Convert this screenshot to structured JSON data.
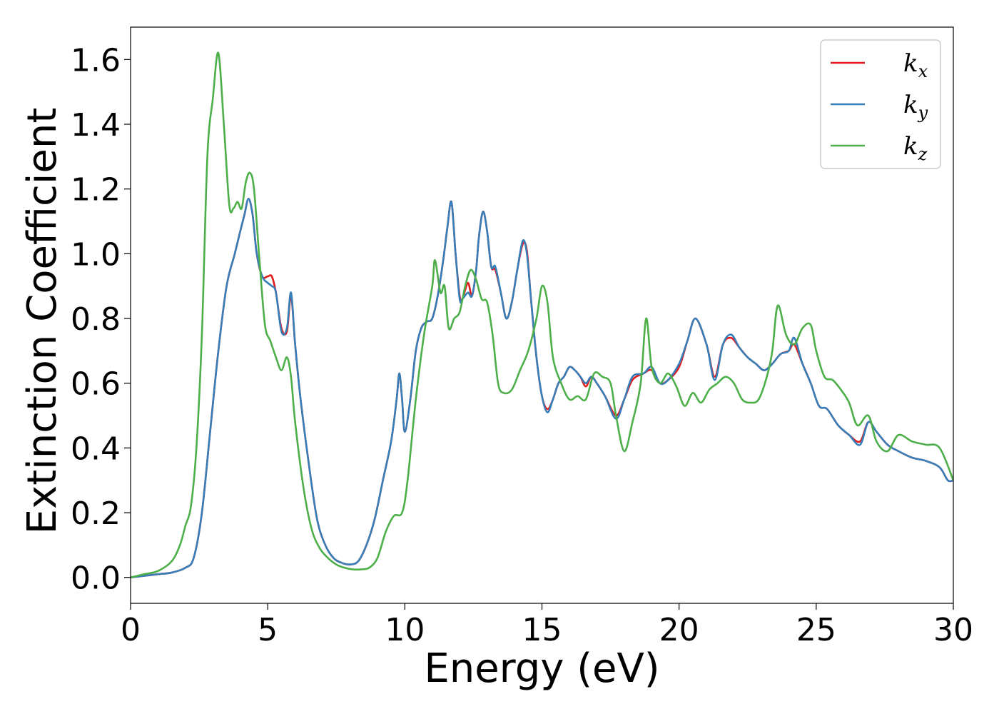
{
  "chart_data": {
    "type": "line",
    "title": "",
    "xlabel": "Energy (eV)",
    "ylabel": "Extinction Coefficient",
    "xlim": [
      0,
      30
    ],
    "ylim": [
      -0.08,
      1.7
    ],
    "xticks": [
      0,
      5,
      10,
      15,
      20,
      25,
      30
    ],
    "yticks": [
      "0.0",
      "0.2",
      "0.4",
      "0.6",
      "0.8",
      "1.0",
      "1.2",
      "1.4",
      "1.6"
    ],
    "grid": false,
    "legend_position": "top-right",
    "series": [
      {
        "name": "k_x",
        "legend_main": "k",
        "legend_sub": "x",
        "color": "#e41a1c",
        "x": [
          0,
          0.5,
          1.0,
          1.5,
          2.0,
          2.3,
          2.6,
          2.9,
          3.2,
          3.5,
          3.8,
          4.0,
          4.15,
          4.3,
          4.45,
          4.6,
          4.8,
          5.0,
          5.15,
          5.3,
          5.5,
          5.7,
          5.85,
          6.0,
          6.2,
          6.5,
          6.8,
          7.1,
          7.4,
          7.7,
          8.0,
          8.3,
          8.6,
          8.9,
          9.2,
          9.5,
          9.7,
          9.8,
          9.9,
          10.0,
          10.2,
          10.4,
          10.6,
          10.8,
          11.0,
          11.2,
          11.4,
          11.55,
          11.7,
          11.85,
          12.0,
          12.1,
          12.3,
          12.45,
          12.6,
          12.7,
          12.85,
          13.0,
          13.15,
          13.3,
          13.5,
          13.7,
          13.9,
          14.1,
          14.3,
          14.45,
          14.6,
          14.8,
          15.0,
          15.2,
          15.4,
          15.6,
          15.8,
          16.0,
          16.2,
          16.4,
          16.6,
          16.8,
          17.0,
          17.3,
          17.7,
          18.0,
          18.3,
          18.7,
          19.0,
          19.3,
          19.6,
          20.0,
          20.3,
          20.6,
          21.0,
          21.3,
          21.6,
          21.9,
          22.2,
          22.5,
          22.8,
          23.1,
          23.4,
          23.7,
          24.0,
          24.2,
          24.5,
          24.8,
          25.1,
          25.4,
          25.8,
          26.2,
          26.6,
          26.9,
          27.2,
          27.6,
          28.0,
          28.5,
          29.0,
          29.5,
          29.8,
          30.0
        ],
        "y": [
          0.0,
          0.005,
          0.01,
          0.015,
          0.03,
          0.06,
          0.2,
          0.45,
          0.7,
          0.9,
          1.0,
          1.07,
          1.12,
          1.17,
          1.12,
          1.0,
          0.93,
          0.93,
          0.93,
          0.88,
          0.77,
          0.76,
          0.87,
          0.72,
          0.55,
          0.35,
          0.18,
          0.1,
          0.06,
          0.045,
          0.04,
          0.05,
          0.1,
          0.18,
          0.3,
          0.42,
          0.55,
          0.63,
          0.55,
          0.45,
          0.55,
          0.7,
          0.77,
          0.79,
          0.8,
          0.87,
          0.98,
          1.08,
          1.16,
          1.0,
          0.87,
          0.86,
          0.91,
          0.87,
          0.95,
          1.05,
          1.13,
          1.07,
          0.96,
          0.95,
          0.88,
          0.8,
          0.85,
          0.95,
          1.03,
          1.01,
          0.86,
          0.68,
          0.56,
          0.52,
          0.55,
          0.6,
          0.62,
          0.65,
          0.64,
          0.62,
          0.59,
          0.62,
          0.6,
          0.56,
          0.5,
          0.55,
          0.61,
          0.63,
          0.64,
          0.6,
          0.61,
          0.65,
          0.73,
          0.8,
          0.72,
          0.62,
          0.72,
          0.74,
          0.71,
          0.68,
          0.66,
          0.64,
          0.66,
          0.69,
          0.7,
          0.72,
          0.66,
          0.6,
          0.53,
          0.52,
          0.47,
          0.44,
          0.42,
          0.48,
          0.45,
          0.41,
          0.39,
          0.37,
          0.36,
          0.34,
          0.3,
          0.3
        ]
      },
      {
        "name": "k_y",
        "legend_main": "k",
        "legend_sub": "y",
        "color": "#377eb8",
        "x": [
          0,
          0.5,
          1.0,
          1.5,
          2.0,
          2.3,
          2.6,
          2.9,
          3.2,
          3.5,
          3.8,
          4.0,
          4.15,
          4.3,
          4.45,
          4.6,
          4.8,
          5.0,
          5.15,
          5.3,
          5.5,
          5.7,
          5.85,
          6.0,
          6.2,
          6.5,
          6.8,
          7.1,
          7.4,
          7.7,
          8.0,
          8.3,
          8.6,
          8.9,
          9.2,
          9.5,
          9.7,
          9.8,
          9.9,
          10.0,
          10.2,
          10.4,
          10.6,
          10.8,
          11.0,
          11.2,
          11.4,
          11.55,
          11.7,
          11.85,
          12.0,
          12.1,
          12.3,
          12.45,
          12.6,
          12.7,
          12.85,
          13.0,
          13.15,
          13.3,
          13.5,
          13.7,
          13.9,
          14.1,
          14.3,
          14.45,
          14.6,
          14.8,
          15.0,
          15.2,
          15.4,
          15.6,
          15.8,
          16.0,
          16.2,
          16.4,
          16.6,
          16.8,
          17.0,
          17.3,
          17.7,
          18.0,
          18.3,
          18.7,
          19.0,
          19.3,
          19.6,
          20.0,
          20.3,
          20.6,
          21.0,
          21.3,
          21.6,
          21.9,
          22.2,
          22.5,
          22.8,
          23.1,
          23.4,
          23.7,
          24.0,
          24.2,
          24.5,
          24.8,
          25.1,
          25.4,
          25.8,
          26.2,
          26.6,
          26.9,
          27.2,
          27.6,
          28.0,
          28.5,
          29.0,
          29.5,
          29.8,
          30.0
        ],
        "y": [
          0.0,
          0.005,
          0.01,
          0.015,
          0.03,
          0.06,
          0.2,
          0.45,
          0.7,
          0.9,
          1.0,
          1.07,
          1.12,
          1.17,
          1.12,
          1.0,
          0.93,
          0.91,
          0.9,
          0.88,
          0.76,
          0.77,
          0.88,
          0.72,
          0.55,
          0.35,
          0.18,
          0.1,
          0.06,
          0.045,
          0.04,
          0.05,
          0.1,
          0.18,
          0.3,
          0.42,
          0.55,
          0.63,
          0.55,
          0.45,
          0.55,
          0.7,
          0.77,
          0.79,
          0.8,
          0.87,
          0.98,
          1.08,
          1.16,
          1.0,
          0.86,
          0.86,
          0.88,
          0.87,
          0.95,
          1.05,
          1.13,
          1.07,
          0.96,
          0.96,
          0.88,
          0.8,
          0.85,
          0.95,
          1.04,
          1.0,
          0.86,
          0.68,
          0.56,
          0.51,
          0.55,
          0.6,
          0.62,
          0.65,
          0.64,
          0.62,
          0.6,
          0.62,
          0.6,
          0.56,
          0.49,
          0.55,
          0.62,
          0.63,
          0.65,
          0.6,
          0.61,
          0.66,
          0.73,
          0.8,
          0.72,
          0.61,
          0.72,
          0.75,
          0.71,
          0.68,
          0.66,
          0.64,
          0.66,
          0.69,
          0.7,
          0.74,
          0.66,
          0.6,
          0.53,
          0.52,
          0.47,
          0.44,
          0.41,
          0.48,
          0.45,
          0.41,
          0.39,
          0.37,
          0.36,
          0.34,
          0.3,
          0.3
        ]
      },
      {
        "name": "k_z",
        "legend_main": "k",
        "legend_sub": "z",
        "color": "#4daf4a",
        "x": [
          0,
          0.5,
          1.0,
          1.5,
          1.8,
          2.0,
          2.2,
          2.4,
          2.6,
          2.8,
          3.0,
          3.2,
          3.4,
          3.6,
          3.75,
          3.9,
          4.05,
          4.2,
          4.35,
          4.5,
          4.7,
          4.9,
          5.1,
          5.3,
          5.5,
          5.7,
          5.85,
          6.0,
          6.3,
          6.6,
          6.9,
          7.2,
          7.5,
          7.8,
          8.1,
          8.4,
          8.7,
          9.0,
          9.3,
          9.6,
          9.9,
          10.1,
          10.4,
          10.7,
          11.0,
          11.1,
          11.3,
          11.45,
          11.6,
          11.8,
          12.0,
          12.2,
          12.4,
          12.6,
          12.8,
          13.0,
          13.2,
          13.4,
          13.6,
          13.9,
          14.2,
          14.5,
          14.8,
          15.0,
          15.2,
          15.4,
          15.7,
          16.0,
          16.3,
          16.6,
          16.9,
          17.2,
          17.5,
          17.7,
          18.0,
          18.3,
          18.6,
          18.8,
          19.0,
          19.3,
          19.6,
          19.9,
          20.2,
          20.5,
          20.8,
          21.1,
          21.4,
          21.7,
          22.0,
          22.3,
          22.6,
          22.9,
          23.2,
          23.4,
          23.6,
          23.9,
          24.2,
          24.5,
          24.8,
          25.0,
          25.3,
          25.6,
          25.9,
          26.2,
          26.5,
          26.9,
          27.2,
          27.6,
          28.0,
          28.5,
          29.0,
          29.5,
          30.0
        ],
        "y": [
          0.0,
          0.01,
          0.02,
          0.05,
          0.1,
          0.16,
          0.22,
          0.4,
          0.75,
          1.3,
          1.48,
          1.62,
          1.4,
          1.15,
          1.14,
          1.16,
          1.14,
          1.22,
          1.25,
          1.2,
          0.98,
          0.78,
          0.73,
          0.68,
          0.64,
          0.68,
          0.62,
          0.48,
          0.28,
          0.15,
          0.09,
          0.06,
          0.04,
          0.03,
          0.025,
          0.025,
          0.03,
          0.06,
          0.14,
          0.19,
          0.2,
          0.3,
          0.55,
          0.75,
          0.9,
          0.98,
          0.88,
          0.9,
          0.77,
          0.8,
          0.82,
          0.9,
          0.95,
          0.92,
          0.86,
          0.85,
          0.75,
          0.6,
          0.57,
          0.58,
          0.64,
          0.7,
          0.8,
          0.9,
          0.85,
          0.68,
          0.6,
          0.55,
          0.56,
          0.55,
          0.63,
          0.62,
          0.6,
          0.5,
          0.39,
          0.48,
          0.6,
          0.8,
          0.65,
          0.6,
          0.63,
          0.59,
          0.53,
          0.57,
          0.54,
          0.58,
          0.6,
          0.62,
          0.6,
          0.55,
          0.54,
          0.55,
          0.62,
          0.7,
          0.84,
          0.75,
          0.72,
          0.77,
          0.78,
          0.7,
          0.62,
          0.61,
          0.58,
          0.54,
          0.47,
          0.5,
          0.42,
          0.39,
          0.44,
          0.42,
          0.41,
          0.4,
          0.3
        ]
      }
    ]
  }
}
